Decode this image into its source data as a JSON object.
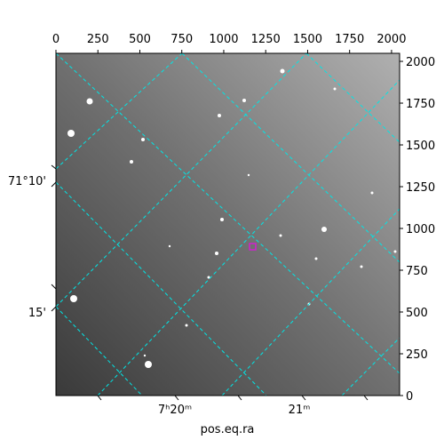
{
  "chart_data": {
    "type": "image",
    "xlabel": "pos.eq.ra",
    "xlim": [
      0,
      2048
    ],
    "xticks": [
      0,
      250,
      500,
      750,
      1000,
      1250,
      1500,
      1750,
      2000
    ],
    "ylim": [
      0,
      2048
    ],
    "yticks": [
      0,
      250,
      500,
      750,
      1000,
      1250,
      1500,
      1750,
      2000
    ],
    "ra_tick_labels": [
      "7ʰ20ᵐ",
      "21ᵐ"
    ],
    "dec_tick_labels": [
      "71°10'",
      "15'"
    ],
    "grid_color": "#00e5e5",
    "marker_color": "#d020d0"
  }
}
